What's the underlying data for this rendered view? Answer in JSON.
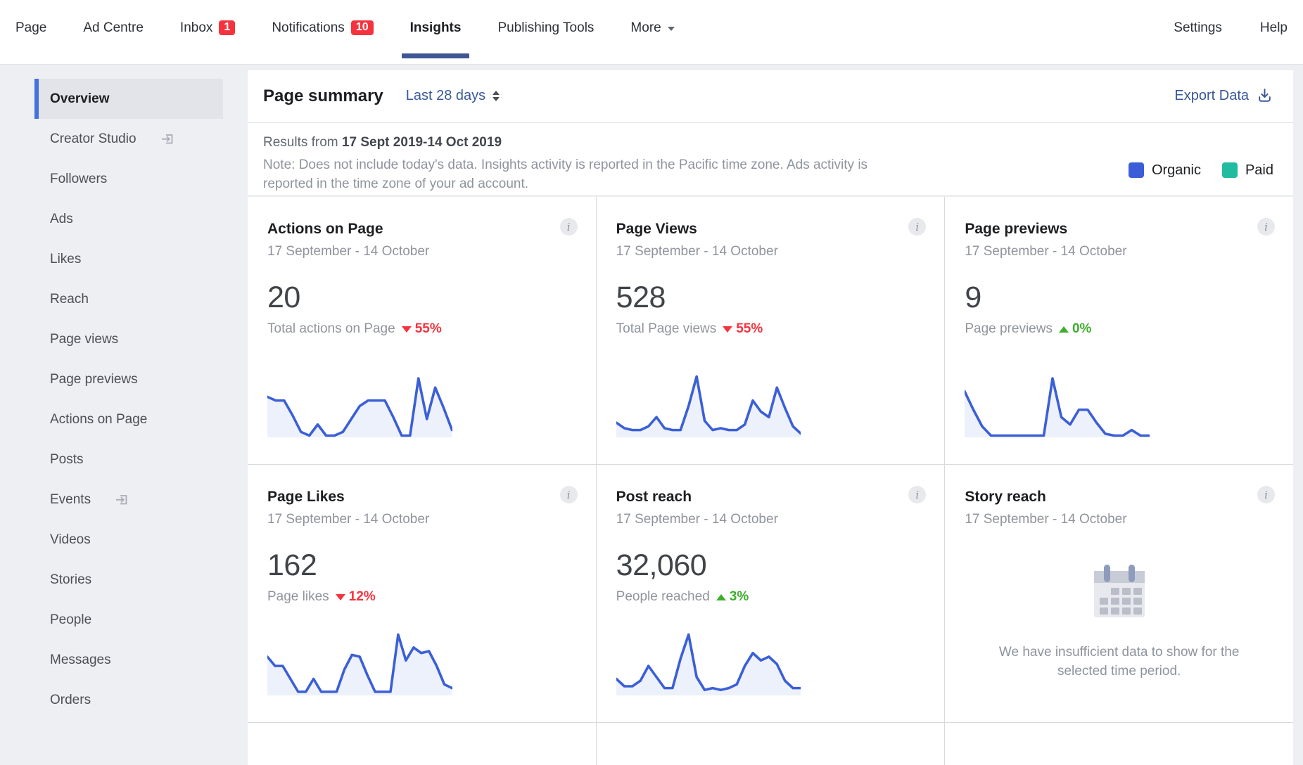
{
  "nav": {
    "items": [
      {
        "label": "Page"
      },
      {
        "label": "Ad Centre"
      },
      {
        "label": "Inbox",
        "badge": "1"
      },
      {
        "label": "Notifications",
        "badge": "10"
      },
      {
        "label": "Insights",
        "active": true
      },
      {
        "label": "Publishing Tools"
      },
      {
        "label": "More",
        "has_caret": true
      }
    ],
    "right_items": [
      {
        "label": "Settings"
      },
      {
        "label": "Help"
      }
    ]
  },
  "sidebar": {
    "items": [
      {
        "label": "Overview",
        "selected": true
      },
      {
        "label": "Creator Studio",
        "external": true
      },
      {
        "label": "Followers"
      },
      {
        "label": "Ads"
      },
      {
        "label": "Likes"
      },
      {
        "label": "Reach"
      },
      {
        "label": "Page views"
      },
      {
        "label": "Page previews"
      },
      {
        "label": "Actions on Page"
      },
      {
        "label": "Posts"
      },
      {
        "label": "Events",
        "external": true
      },
      {
        "label": "Videos"
      },
      {
        "label": "Stories"
      },
      {
        "label": "People"
      },
      {
        "label": "Messages"
      },
      {
        "label": "Orders"
      }
    ]
  },
  "header": {
    "title": "Page summary",
    "range_label": "Last 28 days",
    "export_label": "Export Data"
  },
  "results": {
    "prefix": "Results from ",
    "dates": "17 Sept 2019-14 Oct 2019",
    "note": "Note: Does not include today's data. Insights activity is reported in the Pacific time zone. Ads activity is reported in the time zone of your ad account."
  },
  "legend": [
    {
      "label": "Organic",
      "color": "#3b5ed8"
    },
    {
      "label": "Paid",
      "color": "#1fbc9f"
    }
  ],
  "icons": {
    "info": "i"
  },
  "cards": [
    {
      "title": "Actions on Page",
      "date_range": "17 September - 14 October",
      "value": "20",
      "stat_label": "Total actions on Page",
      "trend_dir": "down",
      "trend_pct": "55%",
      "spark": [
        15,
        17,
        17,
        25,
        34,
        36,
        30,
        36,
        36,
        34,
        27,
        20,
        17,
        17,
        17,
        26,
        36,
        36,
        5,
        27,
        10,
        21,
        33
      ]
    },
    {
      "title": "Page Views",
      "date_range": "17 September - 14 October",
      "value": "528",
      "stat_label": "Total Page views",
      "trend_dir": "down",
      "trend_pct": "55%",
      "spark": [
        29,
        32,
        33,
        33,
        31,
        26,
        32,
        33,
        33,
        20,
        4,
        28,
        33,
        32,
        33,
        33,
        30,
        17,
        23,
        26,
        10,
        21,
        31,
        35
      ]
    },
    {
      "title": "Page previews",
      "date_range": "17 September - 14 October",
      "value": "9",
      "stat_label": "Page previews",
      "trend_dir": "up",
      "trend_pct": "0%",
      "spark": [
        12,
        22,
        31,
        36,
        36,
        36,
        36,
        36,
        36,
        36,
        5,
        26,
        30,
        22,
        22,
        29,
        35,
        36,
        36,
        33,
        36,
        36
      ]
    },
    {
      "title": "Page Likes",
      "date_range": "17 September - 14 October",
      "value": "162",
      "stat_label": "Page likes",
      "trend_dir": "down",
      "trend_pct": "12%",
      "spark": [
        16,
        21,
        21,
        28,
        35,
        35,
        28,
        35,
        35,
        35,
        23,
        15,
        16,
        26,
        35,
        35,
        35,
        4,
        18,
        11,
        14,
        13,
        21,
        31,
        33
      ]
    },
    {
      "title": "Post reach",
      "date_range": "17 September - 14 October",
      "value": "32,060",
      "stat_label": "People reached",
      "trend_dir": "up",
      "trend_pct": "3%",
      "spark": [
        28,
        32,
        32,
        29,
        21,
        27,
        33,
        33,
        17,
        4,
        27,
        34,
        33,
        34,
        33,
        31,
        21,
        14,
        18,
        16,
        20,
        29,
        33,
        33
      ]
    },
    {
      "title": "Story reach",
      "date_range": "17 September - 14 October",
      "empty_message": "We have insufficient data to show for the selected time period."
    }
  ]
}
